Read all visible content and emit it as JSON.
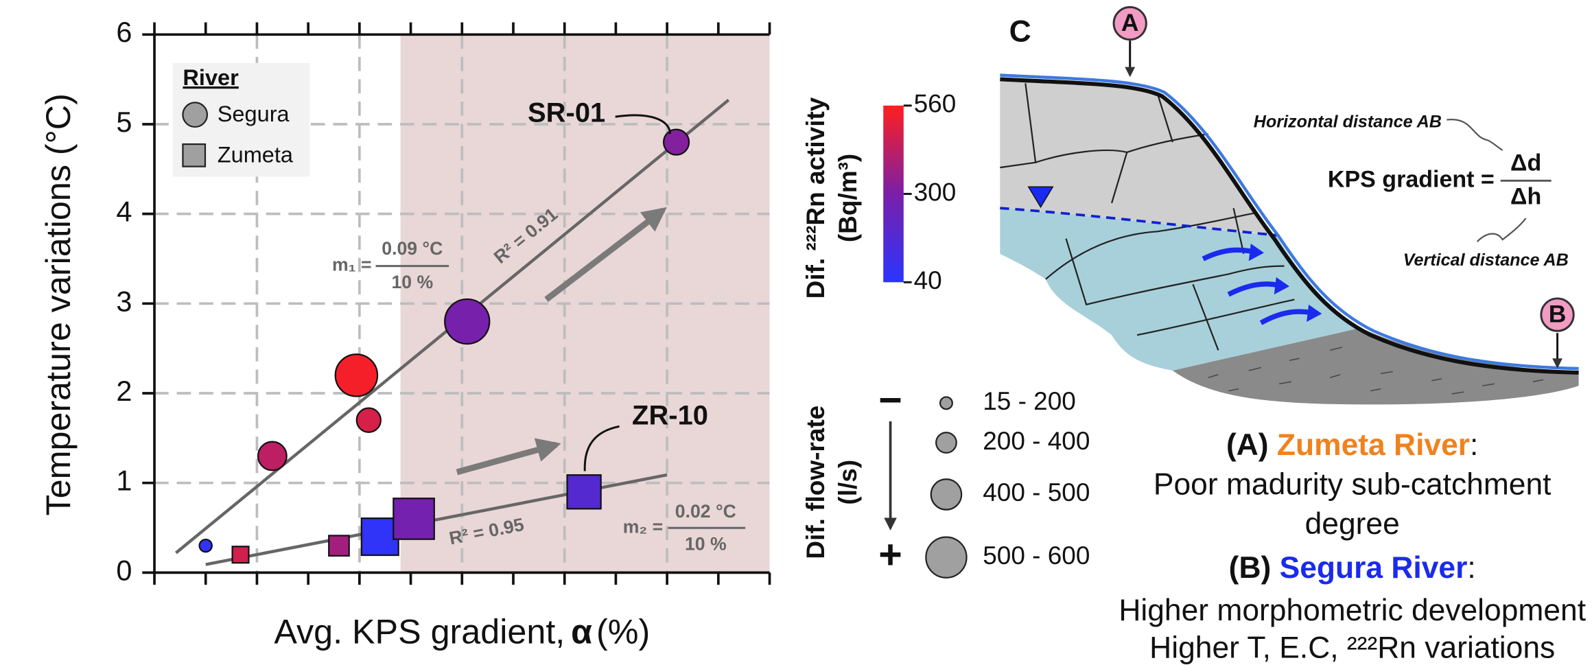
{
  "chart_data": {
    "type": "scatter",
    "y_label": "Temperature variations (°C)",
    "x_label": [
      "Avg. KPS gradient,",
      "α",
      "(%)"
    ],
    "xlim": [
      0,
      6
    ],
    "ylim": [
      0,
      6
    ],
    "xticks": [
      0,
      0.5,
      1,
      1.5,
      2,
      2.5,
      3,
      3.5,
      4,
      4.5,
      5,
      5.5,
      6
    ],
    "yticks": [
      0,
      1,
      2,
      3,
      4,
      5,
      6
    ],
    "grid": true,
    "shaded_xrange": [
      2.4,
      6
    ],
    "legend_title": "River",
    "series": [
      {
        "name": "Segura",
        "marker": "circle",
        "x": [
          0.5,
          1.15,
          1.97,
          2.09,
          3.05,
          5.09
        ],
        "values": [
          0.3,
          1.3,
          2.2,
          1.7,
          2.8,
          4.8
        ],
        "radon": [
          60,
          430,
          540,
          480,
          290,
          320
        ],
        "flow": [
          100,
          350,
          560,
          280,
          600,
          300
        ]
      },
      {
        "name": "Zumeta",
        "marker": "square",
        "x": [
          0.84,
          1.8,
          2.2,
          2.53,
          4.19
        ],
        "values": [
          0.2,
          0.3,
          0.4,
          0.6,
          0.9
        ],
        "radon": [
          470,
          380,
          60,
          280,
          180
        ],
        "flow": [
          160,
          220,
          480,
          540,
          430
        ]
      }
    ],
    "fits": [
      {
        "x": [
          0.21,
          5.6
        ],
        "y": [
          0.22,
          5.27
        ],
        "label": "R² = 0.91"
      },
      {
        "x": [
          0.5,
          5.0
        ],
        "y": [
          0.09,
          1.09
        ],
        "label": "R² = 0.95"
      }
    ],
    "annotations": {
      "sr": "SR-01",
      "zr": "ZR-10",
      "m1": "m₁ =",
      "m1_num": "0.09 °C",
      "m1_den": "10 %",
      "m2": "m₂ =",
      "m2_num": "0.02 °C",
      "m2_den": "10 %"
    },
    "colorbar": {
      "label": [
        "Dif. ²²²Rn activity",
        "(Bq/m³)"
      ],
      "lim": [
        40,
        560
      ],
      "ticks": [
        40,
        300,
        560
      ],
      "colors": [
        "#2a35ff",
        "#7a1fa8",
        "#ff1f1f"
      ]
    },
    "size_legend": {
      "label": [
        "Dif. flow-rate",
        "(l/s)"
      ],
      "low": "−",
      "high": "+",
      "entries": [
        "15 - 200",
        "200 - 400",
        "400 - 500",
        "500 - 600"
      ]
    }
  },
  "diagram": {
    "panel": "C",
    "point_a": "A",
    "point_b": "B",
    "horizontal": "Horizontal distance AB",
    "vertical": "Vertical distance AB",
    "formula": "KPS gradient =",
    "numerator": "Δd",
    "denominator": "Δh",
    "caption": [
      [
        "(A) ",
        "Zumeta River",
        ":"
      ],
      "Poor madurity sub-catchment",
      "degree",
      [
        "(B) ",
        "Segura River",
        ":"
      ],
      "Higher morphometric development",
      "Higher T, E.C, ²²²Rn variations"
    ]
  }
}
